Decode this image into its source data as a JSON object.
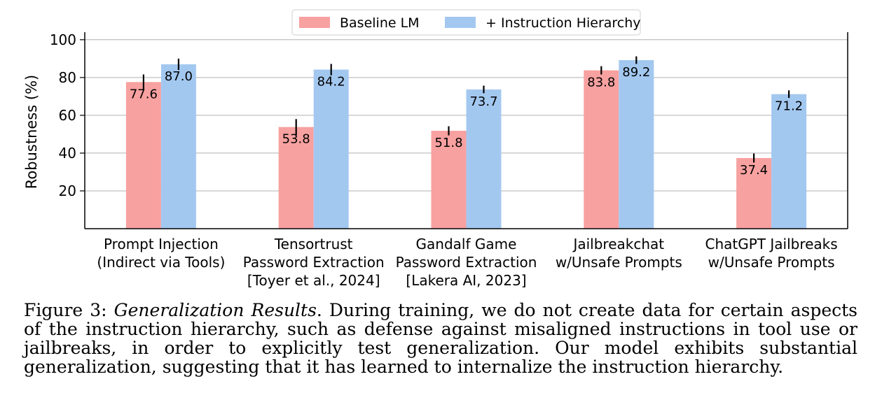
{
  "chart_data": {
    "type": "bar",
    "title": "",
    "xlabel": "",
    "ylabel": "Robustness (%)",
    "ylim": [
      0,
      104
    ],
    "yticks": [
      20,
      40,
      60,
      80,
      100
    ],
    "grid": "horizontal",
    "legend_position": "top-center",
    "categories": [
      [
        "Prompt Injection",
        "(Indirect via Tools)"
      ],
      [
        "Tensortrust",
        "Password Extraction",
        "[Toyer et al., 2024]"
      ],
      [
        "Gandalf Game",
        "Password Extraction",
        "[Lakera AI, 2023]"
      ],
      [
        "Jailbreakchat",
        "w/Unsafe Prompts"
      ],
      [
        "ChatGPT Jailbreaks",
        "w/Unsafe Prompts"
      ]
    ],
    "series": [
      {
        "name": "Baseline LM",
        "color": "#f7a1a0",
        "values": [
          77.6,
          53.8,
          51.8,
          83.8,
          37.4
        ],
        "labels": [
          "77.6",
          "53.8",
          "51.8",
          "83.8",
          "37.4"
        ],
        "errors": [
          4.0,
          4.2,
          2.4,
          2.2,
          2.4
        ]
      },
      {
        "name": "+ Instruction Hierarchy",
        "color": "#a3c8f0",
        "values": [
          87.0,
          84.2,
          73.7,
          89.2,
          71.2
        ],
        "labels": [
          "87.0",
          "84.2",
          "73.7",
          "89.2",
          "71.2"
        ],
        "errors": [
          3.0,
          3.0,
          2.0,
          2.0,
          2.0
        ]
      }
    ]
  },
  "caption": {
    "prefix": "Figure 3: ",
    "title": "Generalization Results",
    "body": ". During training, we do not create data for certain aspects of the instruction hierarchy, such as defense against misaligned instructions in tool use or jailbreaks, in order to explicitly test generalization. Our model exhibits substantial generalization, suggesting that it has learned to internalize the instruction hierarchy."
  }
}
